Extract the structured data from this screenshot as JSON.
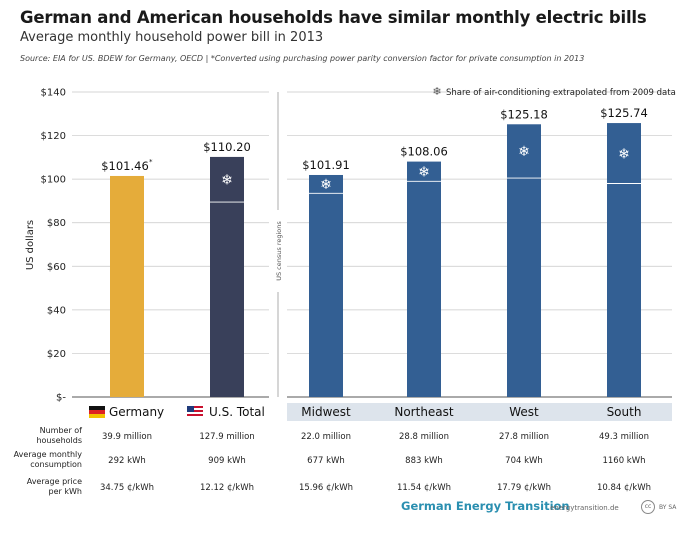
{
  "title": "German and American households have similar monthly electric bills",
  "subtitle": "Average monthly household power bill in 2013",
  "source": "Source: EIA for US. BDEW for Germany, OECD | *Converted using purchasing power parity conversion factor for private consumption in 2013",
  "brand": "German Energy Transition",
  "site": "energytransition.de",
  "license_icon": "cc",
  "license_text": "BY SA",
  "chart_data": {
    "type": "bar",
    "ylabel": "US dollars",
    "ylim": [
      0,
      140
    ],
    "yticks": [
      0,
      20,
      40,
      60,
      80,
      100,
      120,
      140
    ],
    "ytick_labels": [
      "$-",
      "$20",
      "$40",
      "$60",
      "$80",
      "$100",
      "$120",
      "$140"
    ],
    "divider_label": "US census regions",
    "legend": "Share of air-conditioning extrapolated from 2009 data",
    "colors": {
      "germany": "#e5ac3a",
      "us_total": "#39405a",
      "regions": "#335f93",
      "ac_line": "#ffffff",
      "region_band": "#dde4ec"
    },
    "bars": [
      {
        "category": "Germany",
        "value": 101.46,
        "label": "$101.46",
        "asterisk": "*",
        "ac_share": null,
        "group": "country",
        "icon": "germany-flag-icon"
      },
      {
        "category": "U.S. Total",
        "value": 110.2,
        "label": "$110.20",
        "asterisk": "",
        "ac_share": 89.5,
        "group": "country",
        "icon": "us-flag-icon"
      },
      {
        "category": "Midwest",
        "value": 101.91,
        "label": "$101.91",
        "asterisk": "",
        "ac_share": 93.5,
        "group": "region",
        "icon": ""
      },
      {
        "category": "Northeast",
        "value": 108.06,
        "label": "$108.06",
        "asterisk": "",
        "ac_share": 99.0,
        "group": "region",
        "icon": ""
      },
      {
        "category": "West",
        "value": 125.18,
        "label": "$125.18",
        "asterisk": "",
        "ac_share": 100.5,
        "group": "region",
        "icon": ""
      },
      {
        "category": "South",
        "value": 125.74,
        "label": "$125.74",
        "asterisk": "",
        "ac_share": 98.0,
        "group": "region",
        "icon": ""
      }
    ],
    "table": {
      "row_labels": [
        "Number of households",
        "Average monthly consumption",
        "Average price per kWh"
      ],
      "rows": [
        [
          "39.9 million",
          "127.9 million",
          "22.0 million",
          "28.8 million",
          "27.8 million",
          "49.3 million"
        ],
        [
          "292 kWh",
          "909 kWh",
          "677 kWh",
          "883 kWh",
          "704 kWh",
          "1160 kWh"
        ],
        [
          "34.75 ¢/kWh",
          "12.12 ¢/kWh",
          "15.96 ¢/kWh",
          "11.54 ¢/kWh",
          "17.79 ¢/kWh",
          "10.84 ¢/kWh"
        ]
      ]
    }
  }
}
